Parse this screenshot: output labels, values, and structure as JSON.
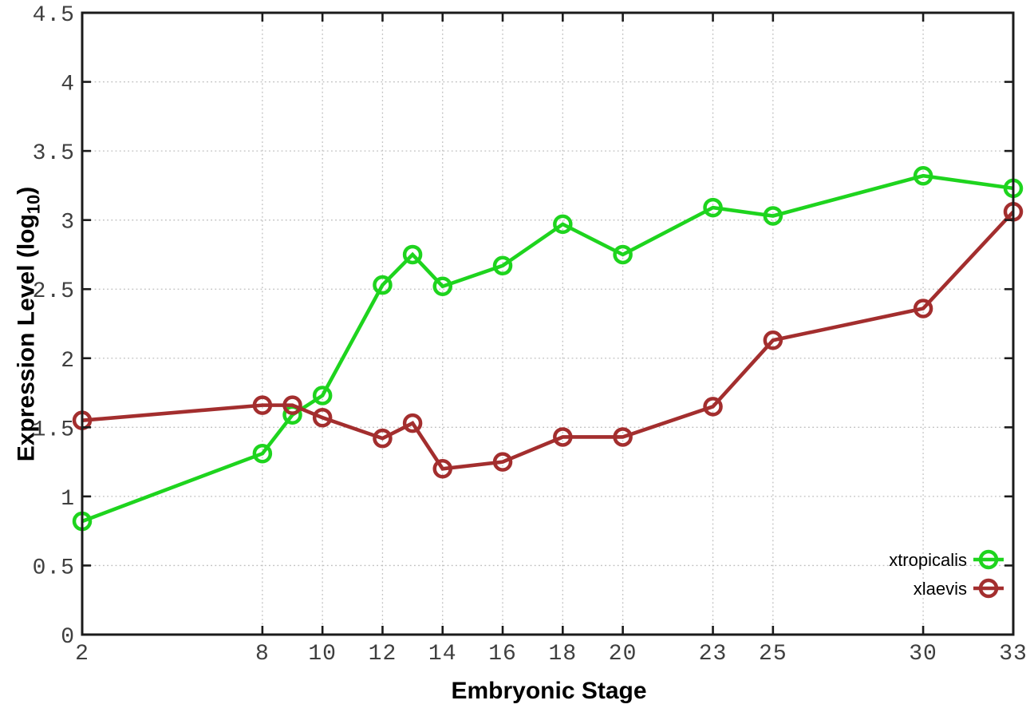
{
  "figure": {
    "background": "#ffffff",
    "ylabel_parts": {
      "pre": "Expression Level (log",
      "sub": "10",
      "post": ")"
    }
  },
  "chart_data": {
    "type": "line",
    "title": "",
    "xlabel": "Embryonic Stage",
    "ylabel": "Expression Level (log10)",
    "x": [
      2,
      8,
      9,
      10,
      12,
      13,
      14,
      16,
      18,
      20,
      23,
      25,
      30,
      33
    ],
    "series": [
      {
        "name": "xtropicalis",
        "color": "#1ed41e",
        "marker": "open-circle",
        "values": [
          0.82,
          1.31,
          1.59,
          1.73,
          2.53,
          2.75,
          2.52,
          2.67,
          2.97,
          2.75,
          3.09,
          3.03,
          3.32,
          3.23
        ]
      },
      {
        "name": "xlaevis",
        "color": "#a32e2e",
        "marker": "open-circle",
        "values": [
          1.55,
          1.66,
          1.66,
          1.57,
          1.42,
          1.53,
          1.2,
          1.25,
          1.43,
          1.43,
          1.65,
          2.13,
          2.36,
          3.06
        ]
      }
    ],
    "xlim": [
      2,
      33
    ],
    "ylim": [
      0,
      4.5
    ],
    "x_ticks": {
      "values": [
        2,
        8,
        10,
        12,
        14,
        16,
        18,
        20,
        23,
        25,
        30,
        33
      ],
      "labels": [
        "2",
        "8",
        "10",
        "12",
        "14",
        "16",
        "18",
        "20",
        "23",
        "25",
        "30",
        "33"
      ]
    },
    "y_ticks": {
      "values": [
        0,
        0.5,
        1,
        1.5,
        2,
        2.5,
        3,
        3.5,
        4,
        4.5
      ],
      "labels": [
        "0",
        "0.5",
        "1",
        "1.5",
        "2",
        "2.5",
        "3",
        "3.5",
        "4",
        "4.5"
      ]
    },
    "grid": true,
    "legend_position": "bottom-right",
    "colors": {
      "grid": "#bfbfbf",
      "border": "#1b1b1b",
      "tick_text": "#3f3f3f",
      "label_text": "#000000"
    }
  }
}
